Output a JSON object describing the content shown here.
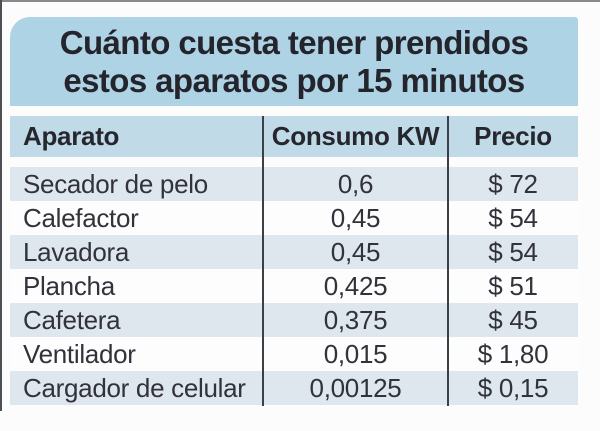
{
  "title": {
    "line1": "Cuánto cuesta tener prendidos",
    "line2": "estos aparatos por 15 minutos"
  },
  "table": {
    "headers": {
      "aparato": "Aparato",
      "consumo": "Consumo KW",
      "precio": "Precio"
    },
    "rows": [
      {
        "aparato": "Secador de pelo",
        "consumo": "0,6",
        "precio": "$ 72"
      },
      {
        "aparato": "Calefactor",
        "consumo": "0,45",
        "precio": "$ 54"
      },
      {
        "aparato": "Lavadora",
        "consumo": "0,45",
        "precio": "$ 54"
      },
      {
        "aparato": "Plancha",
        "consumo": "0,425",
        "precio": "$ 51"
      },
      {
        "aparato": "Cafetera",
        "consumo": "0,375",
        "precio": "$ 45"
      },
      {
        "aparato": "Ventilador",
        "consumo": "0,015",
        "precio": "$ 1,80"
      },
      {
        "aparato": "Cargador de celular",
        "consumo": "0,00125",
        "precio": "$ 0,15"
      }
    ]
  },
  "chart_data": {
    "type": "table",
    "title": "Cuánto cuesta tener prendidos estos aparatos por 15 minutos",
    "columns": [
      "Aparato",
      "Consumo KW",
      "Precio"
    ],
    "rows": [
      [
        "Secador de pelo",
        "0,6",
        "$ 72"
      ],
      [
        "Calefactor",
        "0,45",
        "$ 54"
      ],
      [
        "Lavadora",
        "0,45",
        "$ 54"
      ],
      [
        "Plancha",
        "0,425",
        "$ 51"
      ],
      [
        "Cafetera",
        "0,375",
        "$ 45"
      ],
      [
        "Ventilador",
        "0,015",
        "$ 1,80"
      ],
      [
        "Cargador de celular",
        "0,00125",
        "$ 0,15"
      ]
    ],
    "consumo_kw_numeric": [
      0.6,
      0.45,
      0.45,
      0.425,
      0.375,
      0.015,
      0.00125
    ],
    "precio_numeric": [
      72,
      54,
      54,
      51,
      45,
      1.8,
      0.15
    ],
    "layout_hints": {
      "zebra_striping": true,
      "shaded_row_indices": [
        0,
        2,
        4,
        6
      ]
    }
  },
  "colors": {
    "title_bg": "#aed3e4",
    "header_bg": "#c0dae8",
    "row_shaded_bg": "#dde7ed",
    "row_white_bg": "#fdfdfd",
    "divider": "#3b4045",
    "title_text": "#24242c",
    "body_text": "#32323a",
    "page_bg": "#fcfcfc"
  }
}
